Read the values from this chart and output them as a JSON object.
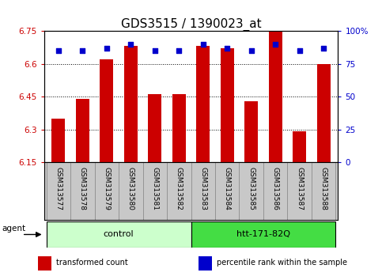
{
  "title": "GDS3515 / 1390023_at",
  "samples": [
    "GSM313577",
    "GSM313578",
    "GSM313579",
    "GSM313580",
    "GSM313581",
    "GSM313582",
    "GSM313583",
    "GSM313584",
    "GSM313585",
    "GSM313586",
    "GSM313587",
    "GSM313588"
  ],
  "bar_values": [
    6.35,
    6.44,
    6.62,
    6.68,
    6.46,
    6.46,
    6.68,
    6.67,
    6.43,
    6.75,
    6.29,
    6.6
  ],
  "percentile_values": [
    85,
    85,
    87,
    90,
    85,
    85,
    90,
    87,
    85,
    90,
    85,
    87
  ],
  "bar_color": "#cc0000",
  "dot_color": "#0000cc",
  "baseline": 6.15,
  "ylim_left": [
    6.15,
    6.75
  ],
  "ylim_right": [
    0,
    100
  ],
  "yticks_left": [
    6.15,
    6.3,
    6.45,
    6.6,
    6.75
  ],
  "ytick_labels_left": [
    "6.15",
    "6.3",
    "6.45",
    "6.6",
    "6.75"
  ],
  "yticks_right": [
    0,
    25,
    50,
    75,
    100
  ],
  "ytick_labels_right": [
    "0",
    "25",
    "50",
    "75",
    "100%"
  ],
  "grid_yticks": [
    6.3,
    6.45,
    6.6
  ],
  "groups": [
    {
      "label": "control",
      "start": 0,
      "end": 6,
      "color": "#ccffcc"
    },
    {
      "label": "htt-171-82Q",
      "start": 6,
      "end": 12,
      "color": "#44dd44"
    }
  ],
  "agent_label": "agent",
  "legend_items": [
    {
      "color": "#cc0000",
      "label": "transformed count"
    },
    {
      "color": "#0000cc",
      "label": "percentile rank within the sample"
    }
  ],
  "bg_color": "#ffffff",
  "plot_bg_color": "#ffffff",
  "tick_label_color_left": "#cc0000",
  "tick_label_color_right": "#0000cc",
  "bar_width": 0.55,
  "title_fontsize": 11,
  "xlim": [
    -0.6,
    11.6
  ]
}
